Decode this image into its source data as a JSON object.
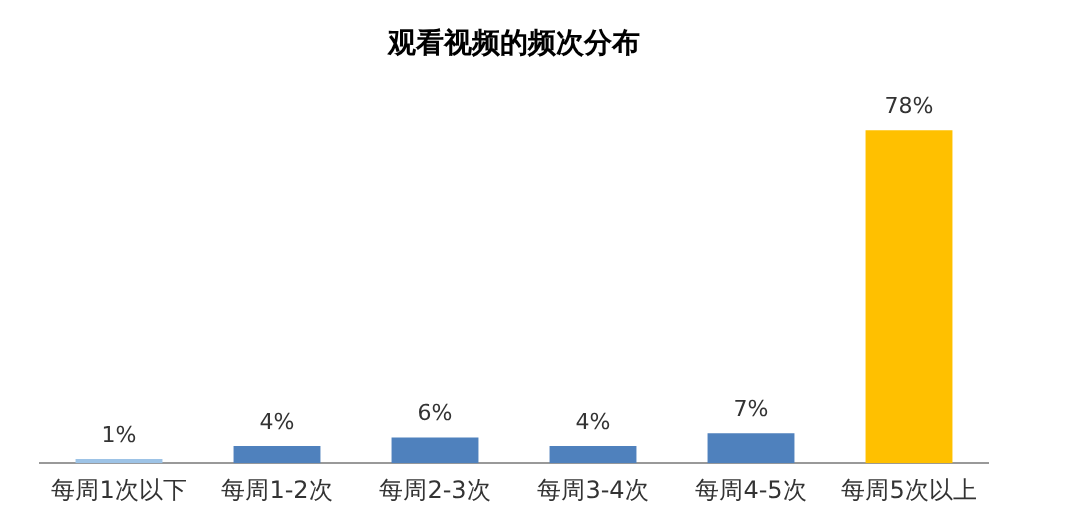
{
  "chart_data": {
    "type": "bar",
    "title": "观看视频的频次分布",
    "categories": [
      "每周1次以下",
      "每周1-2次",
      "每周2-3次",
      "每周3-4次",
      "每周4-5次",
      "每周5次以上"
    ],
    "values": [
      1,
      4,
      6,
      4,
      7,
      78
    ],
    "colors": [
      "#9dc3e6",
      "#4f81bd",
      "#4f81bd",
      "#4f81bd",
      "#4f81bd",
      "#ffc000"
    ],
    "value_labels": [
      "1%",
      "4%",
      "6%",
      "4%",
      "7%",
      "78%"
    ],
    "grid": false,
    "legend": false
  }
}
